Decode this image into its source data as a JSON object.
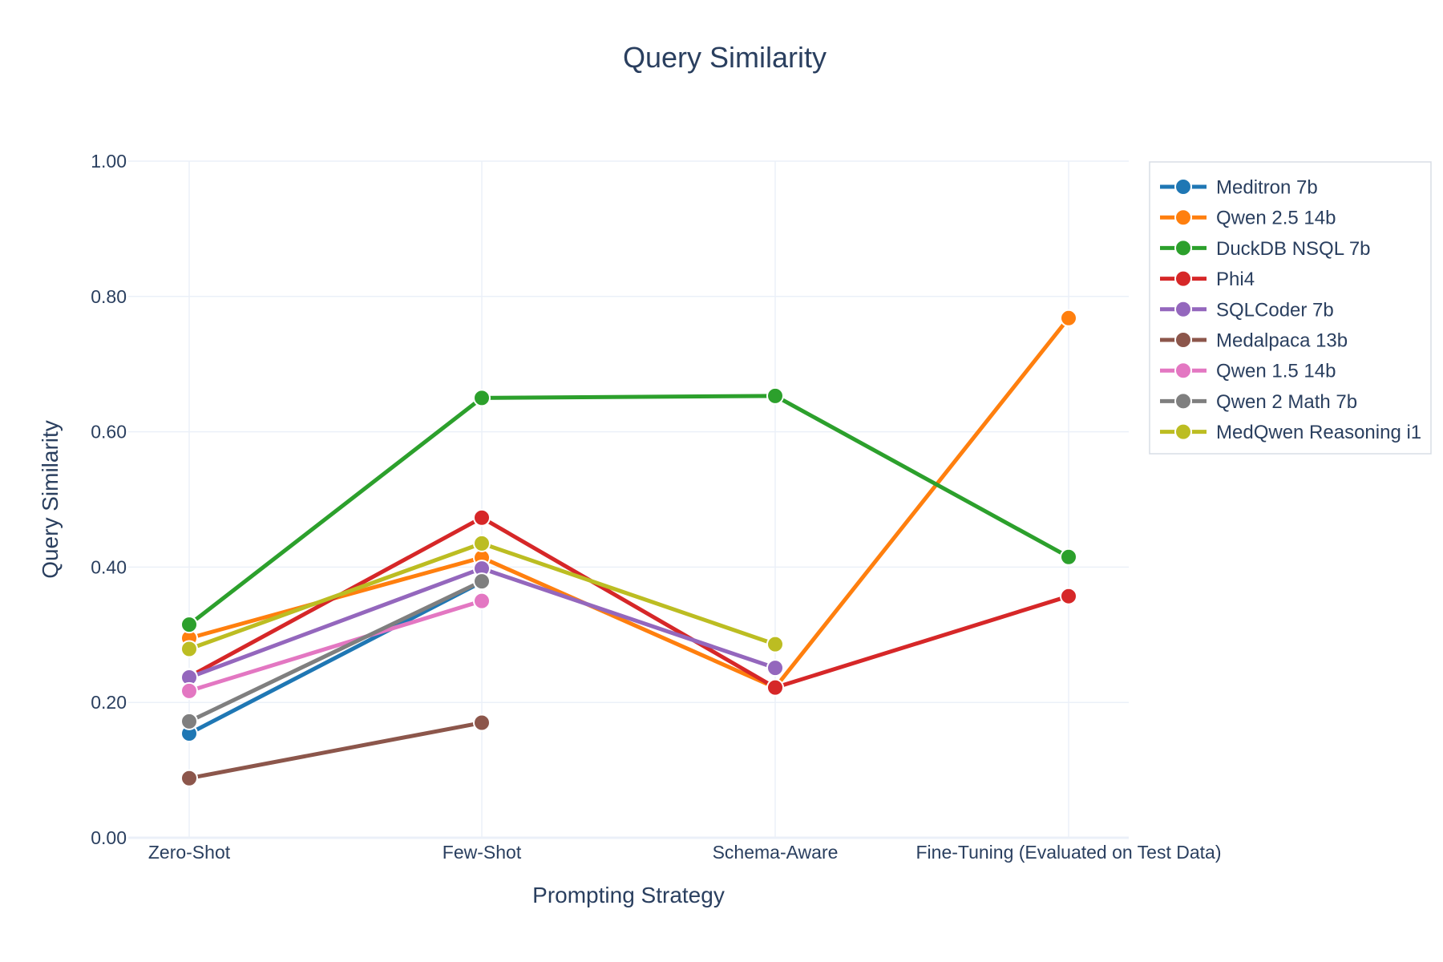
{
  "chart_data": {
    "type": "line",
    "title": "Query Similarity",
    "xlabel": "Prompting Strategy",
    "ylabel": "Query Similarity",
    "categories": [
      "Zero-Shot",
      "Few-Shot",
      "Schema-Aware",
      "Fine-Tuning (Evaluated on Test Data)"
    ],
    "ylim": [
      0,
      1
    ],
    "yticks": [
      "0.00",
      "0.20",
      "0.40",
      "0.60",
      "0.80",
      "1.00"
    ],
    "grid": true,
    "legend_position": "top-right",
    "series": [
      {
        "name": "Meditron 7b",
        "color": "#1f77b4",
        "values": [
          0.154,
          0.378,
          null,
          null
        ]
      },
      {
        "name": "Qwen 2.5 14b",
        "color": "#ff7f0e",
        "values": [
          0.295,
          0.414,
          0.222,
          0.768
        ]
      },
      {
        "name": "DuckDB NSQL 7b",
        "color": "#2ca02c",
        "values": [
          0.315,
          0.65,
          0.653,
          0.415
        ]
      },
      {
        "name": "Phi4",
        "color": "#d62728",
        "values": [
          0.238,
          0.473,
          0.222,
          0.357
        ]
      },
      {
        "name": "SQLCoder 7b",
        "color": "#9467bd",
        "values": [
          0.237,
          0.398,
          0.251,
          null
        ]
      },
      {
        "name": "Medalpaca 13b",
        "color": "#8c564b",
        "values": [
          0.088,
          0.17,
          null,
          null
        ]
      },
      {
        "name": "Qwen 1.5 14b",
        "color": "#e377c2",
        "values": [
          0.217,
          0.35,
          null,
          null
        ]
      },
      {
        "name": "Qwen 2 Math 7b",
        "color": "#7f7f7f",
        "values": [
          0.172,
          0.379,
          null,
          null
        ]
      },
      {
        "name": "MedQwen Reasoning i1",
        "color": "#bcbd22",
        "values": [
          0.279,
          0.435,
          0.286,
          null
        ]
      }
    ]
  }
}
